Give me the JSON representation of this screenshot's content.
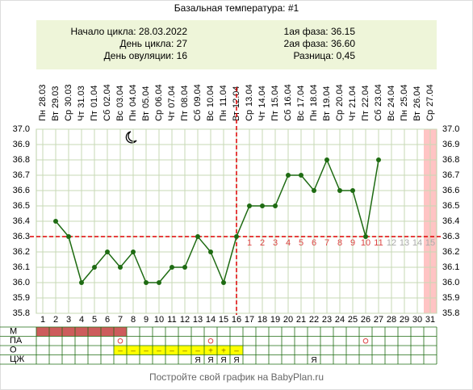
{
  "chart_data": {
    "type": "line",
    "title": "Базальная температура: #1",
    "info_left": [
      "Начало цикла: 28.03.2022",
      "День цикла: 27",
      "День овуляции: 16"
    ],
    "info_right": [
      "1ая фаза: 36.15",
      "2ая фаза: 36.60",
      "Разница: 0,45"
    ],
    "weekdays": [
      "Пн",
      "Вт",
      "Ср",
      "Чт",
      "Пт",
      "Сб",
      "Вс",
      "Пн",
      "Вт",
      "Ср",
      "Чт",
      "Пт",
      "Сб",
      "Вс",
      "Пн",
      "Вт",
      "Ср",
      "Чт",
      "Пт",
      "Сб",
      "Вс",
      "Пн",
      "Вт",
      "Ср",
      "Чт",
      "Пт",
      "Сб",
      "Вс",
      "Пн",
      "Вт",
      "Ср"
    ],
    "dates": [
      "28.03",
      "29.03",
      "30.03",
      "31.03",
      "01.04",
      "02.04",
      "03.04",
      "04.04",
      "05.04",
      "06.04",
      "07.04",
      "08.04",
      "09.04",
      "10.04",
      "11.04",
      "12.04",
      "13.04",
      "14.04",
      "15.04",
      "16.04",
      "17.04",
      "18.04",
      "19.04",
      "20.04",
      "21.04",
      "22.04",
      "23.04",
      "24.04",
      "25.04",
      "26.04",
      "27.04"
    ],
    "categories": [
      1,
      2,
      3,
      4,
      5,
      6,
      7,
      8,
      9,
      10,
      11,
      12,
      13,
      14,
      15,
      16,
      17,
      18,
      19,
      20,
      21,
      22,
      23,
      24,
      25,
      26,
      27,
      28,
      29,
      30,
      31
    ],
    "values": [
      null,
      36.4,
      36.3,
      36.0,
      36.1,
      36.2,
      36.1,
      36.2,
      36.0,
      36.0,
      36.1,
      36.1,
      36.3,
      36.2,
      36.0,
      36.3,
      36.5,
      36.5,
      36.5,
      36.7,
      36.7,
      36.6,
      36.8,
      36.6,
      36.6,
      36.3,
      36.8,
      null,
      null,
      null,
      null
    ],
    "color": "#1e6b12",
    "ylim": [
      35.8,
      37.0
    ],
    "yticks": [
      {
        "value": 37.0,
        "label": "37.0"
      },
      36.9,
      36.8,
      36.7,
      36.6,
      36.5,
      36.4,
      36.3,
      36.2,
      36.1,
      {
        "value": 36.0,
        "label": "36.0"
      },
      35.9,
      35.8
    ],
    "grid": true,
    "coverline": 36.3,
    "ovulation_day": 16,
    "phase_days": [
      1,
      2,
      3,
      4,
      5,
      6,
      7,
      8,
      9,
      10,
      11,
      12,
      13,
      14,
      15
    ],
    "highlight_day": 31,
    "rows": [
      {
        "label": "М",
        "days": [
          1,
          2,
          3,
          4,
          5,
          6,
          7
        ]
      },
      {
        "label": "ПА",
        "days": [
          7,
          14,
          26
        ]
      },
      {
        "label": "О",
        "days": [
          7,
          8,
          9,
          10,
          11,
          12,
          13,
          14,
          15,
          16
        ],
        "marks": [
          "–",
          "–",
          "–",
          "–",
          "–",
          "–",
          "–",
          "+",
          "+",
          "–"
        ]
      },
      {
        "label": "ЦЖ",
        "days": [
          13,
          14,
          15,
          16,
          22
        ],
        "marks": [
          "Я",
          "Я",
          "Я",
          "Я",
          "Я"
        ]
      }
    ],
    "footer": "Постройте свой график на BabyPlan.ru"
  }
}
